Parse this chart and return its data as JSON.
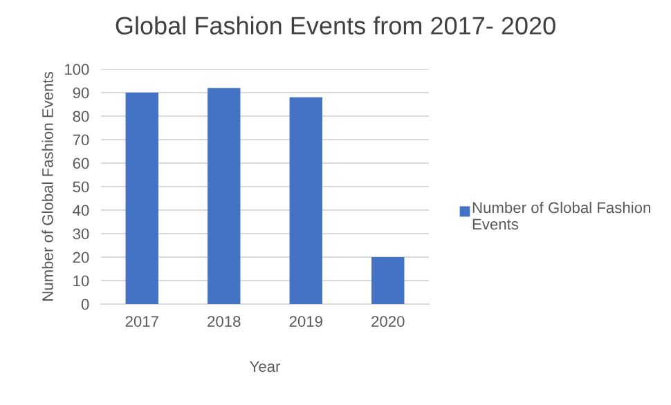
{
  "chart_data": {
    "type": "bar",
    "title": "Global Fashion Events from 2017- 2020",
    "xlabel": "Year",
    "ylabel": "Number of Global Fashion Events",
    "categories": [
      "2017",
      "2018",
      "2019",
      "2020"
    ],
    "series": [
      {
        "name": "Number of Global Fashion Events",
        "color": "#4472c4",
        "values": [
          90,
          92,
          88,
          20
        ]
      }
    ],
    "ylim": [
      0,
      100
    ],
    "yticks": [
      0,
      10,
      20,
      30,
      40,
      50,
      60,
      70,
      80,
      90,
      100
    ],
    "grid": "y",
    "legend": "right"
  }
}
